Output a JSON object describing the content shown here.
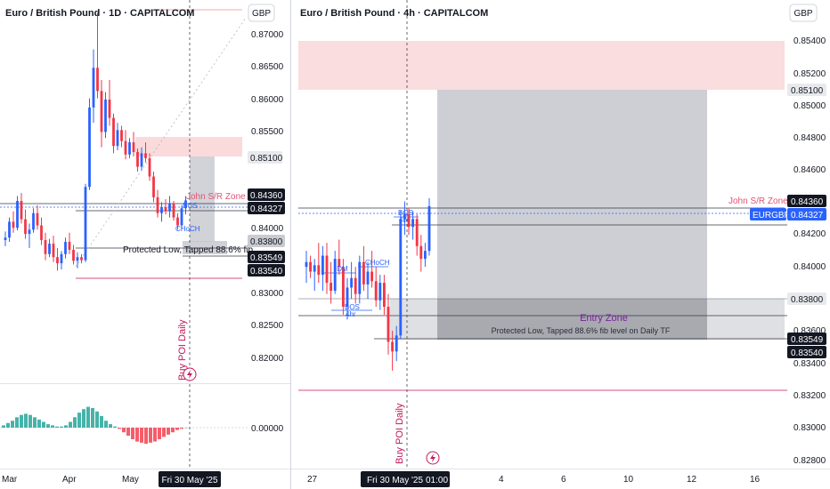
{
  "charts": [
    {
      "title": "Euro / British Pound · 1D · CAPITALCOM",
      "currency": "GBP",
      "y_ticks": [
        "0.87000",
        "0.86500",
        "0.86000",
        "0.85500",
        "0.84000",
        "0.83000",
        "0.82500",
        "0.82000"
      ],
      "x_ticks": [
        "Mar",
        "Apr",
        "May"
      ],
      "cursor_date": "Fri 30 May '25",
      "price_labels": [
        "0.85100",
        "0.84360",
        "0.84327",
        "0.83800",
        "0.83549",
        "0.83540"
      ],
      "annotations": [
        "John S/R Zone",
        "BOS",
        "CHoCH",
        "Protected Low, Tapped 88.6% fib",
        "Buy POI Daily"
      ],
      "osc_tick": "0.00000"
    },
    {
      "title": "Euro / British Pound · 4h · CAPITALCOM",
      "currency": "GBP",
      "y_ticks": [
        "0.85400",
        "0.85200",
        "0.85000",
        "0.84800",
        "0.84600",
        "0.84200",
        "0.84000",
        "0.83600",
        "0.83400",
        "0.83200",
        "0.83000",
        "0.82800"
      ],
      "x_ticks": [
        "27",
        "4",
        "6",
        "10",
        "12",
        "16"
      ],
      "cursor_date": "Fri 30 May '25",
      "cursor_time": "01:00",
      "price_labels": [
        "0.85100",
        "0.84360",
        "0.84327",
        "0.83800",
        "0.83549",
        "0.83540"
      ],
      "symbol_tag": "EURGBP",
      "annotations": [
        "John S/R Zone",
        "IDM",
        "CHoCH",
        "BOS",
        "4hr",
        "BOS",
        "4hr",
        "Entry Zone",
        "Protected Low, Tapped 88.6% fib level on Daily TF",
        "Buy POI Daily"
      ]
    }
  ],
  "chart_data": [
    {
      "type": "candlestick",
      "title": "Euro / British Pound · 1D · CAPITALCOM",
      "timeframe": "1D",
      "x_labels": [
        "Mar",
        "Apr",
        "May"
      ],
      "y_range": [
        0.817,
        0.8745
      ],
      "ohlc": [
        [
          0.8368,
          0.8382,
          0.8358,
          0.8372
        ],
        [
          0.8372,
          0.8405,
          0.8365,
          0.8398
        ],
        [
          0.8398,
          0.8415,
          0.838,
          0.8388
        ],
        [
          0.8388,
          0.844,
          0.8384,
          0.8432
        ],
        [
          0.8432,
          0.8445,
          0.8395,
          0.8402
        ],
        [
          0.8402,
          0.8418,
          0.837,
          0.8378
        ],
        [
          0.8378,
          0.8395,
          0.8355,
          0.8385
        ],
        [
          0.8385,
          0.842,
          0.838,
          0.8412
        ],
        [
          0.8412,
          0.8425,
          0.8385,
          0.8392
        ],
        [
          0.8392,
          0.8405,
          0.836,
          0.8368
        ],
        [
          0.8368,
          0.838,
          0.8335,
          0.8345
        ],
        [
          0.8345,
          0.837,
          0.834,
          0.8362
        ],
        [
          0.8362,
          0.8375,
          0.8332,
          0.834
        ],
        [
          0.834,
          0.8355,
          0.8318,
          0.833
        ],
        [
          0.833,
          0.835,
          0.832,
          0.8345
        ],
        [
          0.8345,
          0.8372,
          0.8338,
          0.8365
        ],
        [
          0.8365,
          0.838,
          0.8345,
          0.8352
        ],
        [
          0.8352,
          0.836,
          0.8328,
          0.8334
        ],
        [
          0.8334,
          0.8348,
          0.8322,
          0.834
        ],
        [
          0.834,
          0.8345,
          0.833,
          0.8335
        ],
        [
          0.8335,
          0.846,
          0.8332,
          0.8455
        ],
        [
          0.8455,
          0.86,
          0.845,
          0.8585
        ],
        [
          0.8585,
          0.868,
          0.856,
          0.865
        ],
        [
          0.865,
          0.874,
          0.86,
          0.8612
        ],
        [
          0.8612,
          0.863,
          0.852,
          0.8545
        ],
        [
          0.8545,
          0.861,
          0.8535,
          0.8598
        ],
        [
          0.8598,
          0.863,
          0.8555,
          0.8568
        ],
        [
          0.8568,
          0.8575,
          0.851,
          0.8522
        ],
        [
          0.8522,
          0.856,
          0.8515,
          0.8548
        ],
        [
          0.8548,
          0.8555,
          0.852,
          0.853
        ],
        [
          0.853,
          0.8548,
          0.85,
          0.8508
        ],
        [
          0.8508,
          0.8535,
          0.8502,
          0.8528
        ],
        [
          0.8528,
          0.8545,
          0.8505,
          0.8512
        ],
        [
          0.8512,
          0.8518,
          0.848,
          0.8488
        ],
        [
          0.8488,
          0.852,
          0.8482,
          0.851
        ],
        [
          0.851,
          0.8528,
          0.8495,
          0.8502
        ],
        [
          0.8502,
          0.851,
          0.8465,
          0.8472
        ],
        [
          0.8472,
          0.848,
          0.843,
          0.8438
        ],
        [
          0.8438,
          0.845,
          0.8405,
          0.8412
        ],
        [
          0.8412,
          0.843,
          0.8398,
          0.8422
        ],
        [
          0.8422,
          0.8435,
          0.841,
          0.8415
        ],
        [
          0.8415,
          0.844,
          0.8405,
          0.8428
        ],
        [
          0.8428,
          0.8432,
          0.84,
          0.8405
        ],
        [
          0.8405,
          0.8412,
          0.8385,
          0.8392
        ],
        [
          0.8392,
          0.8425,
          0.8385,
          0.842
        ],
        [
          0.842,
          0.844,
          0.841,
          0.8433
        ]
      ],
      "zones": [
        {
          "name": "John S/R Zone",
          "from": 0.8436,
          "to": 0.851
        },
        {
          "name": "Protected Low",
          "from": 0.8355,
          "to": 0.838
        }
      ],
      "levels": [
        0.851,
        0.8436,
        0.84327,
        0.838,
        0.83549,
        0.8354
      ],
      "oscillator": {
        "zero_label": "0.00000",
        "values": [
          0.2,
          0.4,
          0.6,
          0.9,
          1.1,
          1.2,
          1.1,
          0.9,
          0.7,
          0.5,
          0.3,
          0.2,
          0.1,
          0.1,
          0.2,
          0.5,
          0.9,
          1.3,
          1.6,
          1.8,
          1.7,
          1.4,
          1.0,
          0.6,
          0.3,
          0.1,
          -0.1,
          -0.4,
          -0.7,
          -1.0,
          -1.2,
          -1.3,
          -1.4,
          -1.3,
          -1.2,
          -1.0,
          -0.8,
          -0.6,
          -0.4,
          -0.2,
          -0.1,
          0.0
        ]
      }
    },
    {
      "type": "candlestick",
      "title": "Euro / British Pound · 4h · CAPITALCOM",
      "timeframe": "4h",
      "x_labels": [
        "27",
        "4",
        "6",
        "10",
        "12",
        "16"
      ],
      "y_range": [
        0.8272,
        0.8556
      ],
      "ohlc": [
        [
          0.8395,
          0.8405,
          0.8385,
          0.8398
        ],
        [
          0.8398,
          0.8402,
          0.8388,
          0.8392
        ],
        [
          0.8392,
          0.84,
          0.838,
          0.8396
        ],
        [
          0.8396,
          0.841,
          0.8385,
          0.839
        ],
        [
          0.839,
          0.8408,
          0.838,
          0.8402
        ],
        [
          0.8402,
          0.841,
          0.8378,
          0.8385
        ],
        [
          0.8385,
          0.8398,
          0.8372,
          0.838
        ],
        [
          0.838,
          0.8405,
          0.8378,
          0.84
        ],
        [
          0.84,
          0.8412,
          0.839,
          0.8395
        ],
        [
          0.8395,
          0.84,
          0.8365,
          0.837
        ],
        [
          0.837,
          0.8388,
          0.8362,
          0.8382
        ],
        [
          0.8382,
          0.8398,
          0.8375,
          0.8388
        ],
        [
          0.8388,
          0.8395,
          0.8372,
          0.8378
        ],
        [
          0.8378,
          0.8402,
          0.8372,
          0.8398
        ],
        [
          0.8398,
          0.8408,
          0.838,
          0.8384
        ],
        [
          0.8384,
          0.8398,
          0.8375,
          0.8392
        ],
        [
          0.8392,
          0.8405,
          0.8382,
          0.8386
        ],
        [
          0.8386,
          0.8395,
          0.837,
          0.8374
        ],
        [
          0.8374,
          0.839,
          0.8368,
          0.8385
        ],
        [
          0.8385,
          0.839,
          0.8365,
          0.837
        ],
        [
          0.837,
          0.8378,
          0.834,
          0.8348
        ],
        [
          0.8348,
          0.8355,
          0.833,
          0.8342
        ],
        [
          0.8342,
          0.8358,
          0.8336,
          0.8352
        ],
        [
          0.8352,
          0.843,
          0.835,
          0.8425
        ],
        [
          0.8425,
          0.8436,
          0.8415,
          0.8428
        ],
        [
          0.8428,
          0.8432,
          0.8415,
          0.842
        ],
        [
          0.842,
          0.843,
          0.8412,
          0.8425
        ],
        [
          0.8425,
          0.8428,
          0.8402,
          0.8408
        ],
        [
          0.8408,
          0.8415,
          0.8392,
          0.84
        ],
        [
          0.84,
          0.841,
          0.8395,
          0.8405
        ],
        [
          0.8405,
          0.8438,
          0.8402,
          0.8433
        ]
      ],
      "zones": [
        {
          "name": "John S/R Zone (supply)",
          "from": 0.851,
          "to": 0.8541
        },
        {
          "name": "Target box",
          "from": 0.8355,
          "to": 0.851
        },
        {
          "name": "Entry Zone",
          "from": 0.8355,
          "to": 0.838
        }
      ],
      "levels": [
        0.851,
        0.8436,
        0.84327,
        0.838,
        0.83549,
        0.8354,
        0.8322
      ]
    }
  ]
}
